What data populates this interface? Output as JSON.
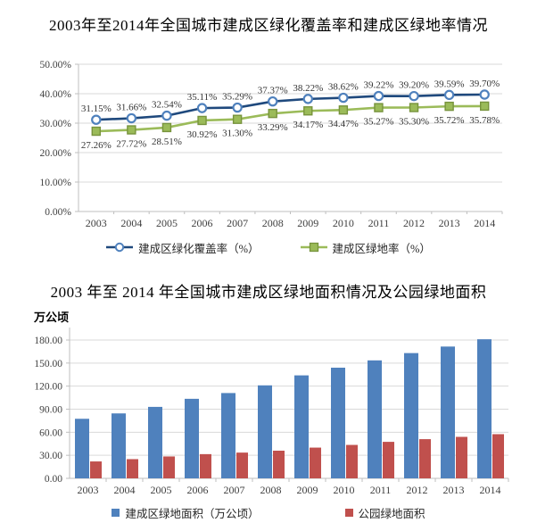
{
  "accent_colors": {
    "line_blue": "#1F497D",
    "marker_ring_blue": "#4F81BD",
    "line_green": "#9BBB59",
    "marker_border_green": "#77933C",
    "bar_blue": "#4F81BD",
    "bar_red": "#C0504D",
    "gridline": "#D9D9D9",
    "axis": "#BFBFBF",
    "tick_text": "#404040",
    "label_text": "#333333"
  },
  "chart_data": [
    {
      "type": "line",
      "title": "2003年至2014年全国城市建成区绿化覆盖率和建成区绿地率情况",
      "categories": [
        "2003",
        "2004",
        "2005",
        "2006",
        "2007",
        "2008",
        "2009",
        "2010",
        "2011",
        "2012",
        "2013",
        "2014"
      ],
      "series": [
        {
          "name": "建成区绿化覆盖率（%）",
          "marker": "circle",
          "line_color": "#1F497D",
          "marker_fill": "#FFFFFF",
          "marker_stroke": "#4F81BD",
          "values": [
            31.15,
            31.66,
            32.54,
            35.11,
            35.29,
            37.37,
            38.22,
            38.62,
            39.22,
            39.2,
            39.59,
            39.7
          ],
          "point_labels": [
            "31.15%",
            "31.66%",
            "32.54%",
            "35.11%",
            "35.29%",
            "37.37%",
            "38.22%",
            "38.62%",
            "39.22%",
            "39.20%",
            "39.59%",
            "39.70%"
          ],
          "label_side": "above"
        },
        {
          "name": "建成区绿地率（%）",
          "marker": "square",
          "line_color": "#9BBB59",
          "marker_fill": "#9BBB59",
          "marker_stroke": "#77933C",
          "values": [
            27.26,
            27.72,
            28.51,
            30.92,
            31.3,
            33.29,
            34.17,
            34.47,
            35.27,
            35.3,
            35.72,
            35.78
          ],
          "point_labels": [
            "27.26%",
            "27.72%",
            "28.51%",
            "30.92%",
            "31.30%",
            "33.29%",
            "34.17%",
            "34.47%",
            "35.27%",
            "35.30%",
            "35.72%",
            "35.78%"
          ],
          "label_side": "below"
        }
      ],
      "y_ticks": [
        {
          "value": 0,
          "label": "0.00%"
        },
        {
          "value": 10,
          "label": "10.00%"
        },
        {
          "value": 20,
          "label": "20.00%"
        },
        {
          "value": 30,
          "label": "30.00%"
        },
        {
          "value": 40,
          "label": "40.00%"
        },
        {
          "value": 50,
          "label": "50.00%"
        }
      ],
      "ylim": [
        0,
        50
      ],
      "grid": true,
      "legend_position": "bottom"
    },
    {
      "type": "bar",
      "title": "2003 年至 2014 年全国城市建成区绿地面积情况及公园绿地面积",
      "y_axis_label": "万公顷",
      "categories": [
        "2003",
        "2004",
        "2005",
        "2006",
        "2007",
        "2008",
        "2009",
        "2010",
        "2011",
        "2012",
        "2013",
        "2014"
      ],
      "series": [
        {
          "name": "建成区绿地面积（万公顷）",
          "color": "#4F81BD",
          "values": [
            77.5,
            84.5,
            93,
            103.5,
            111,
            121,
            134,
            144,
            153.5,
            163,
            171.5,
            181
          ]
        },
        {
          "name": "公园绿地面积",
          "color": "#C0504D",
          "values": [
            22,
            25,
            28.5,
            31.5,
            33.5,
            36,
            40,
            43.5,
            47.5,
            51,
            54,
            57.5
          ]
        }
      ],
      "y_ticks": [
        {
          "value": 0,
          "label": "0.00"
        },
        {
          "value": 30,
          "label": "30.00"
        },
        {
          "value": 60,
          "label": "60.00"
        },
        {
          "value": 90,
          "label": "90.00"
        },
        {
          "value": 120,
          "label": "120.00"
        },
        {
          "value": 150,
          "label": "150.00"
        },
        {
          "value": 180,
          "label": "180.00"
        }
      ],
      "ylim": [
        0,
        180
      ],
      "grid": true,
      "legend_position": "bottom"
    }
  ]
}
